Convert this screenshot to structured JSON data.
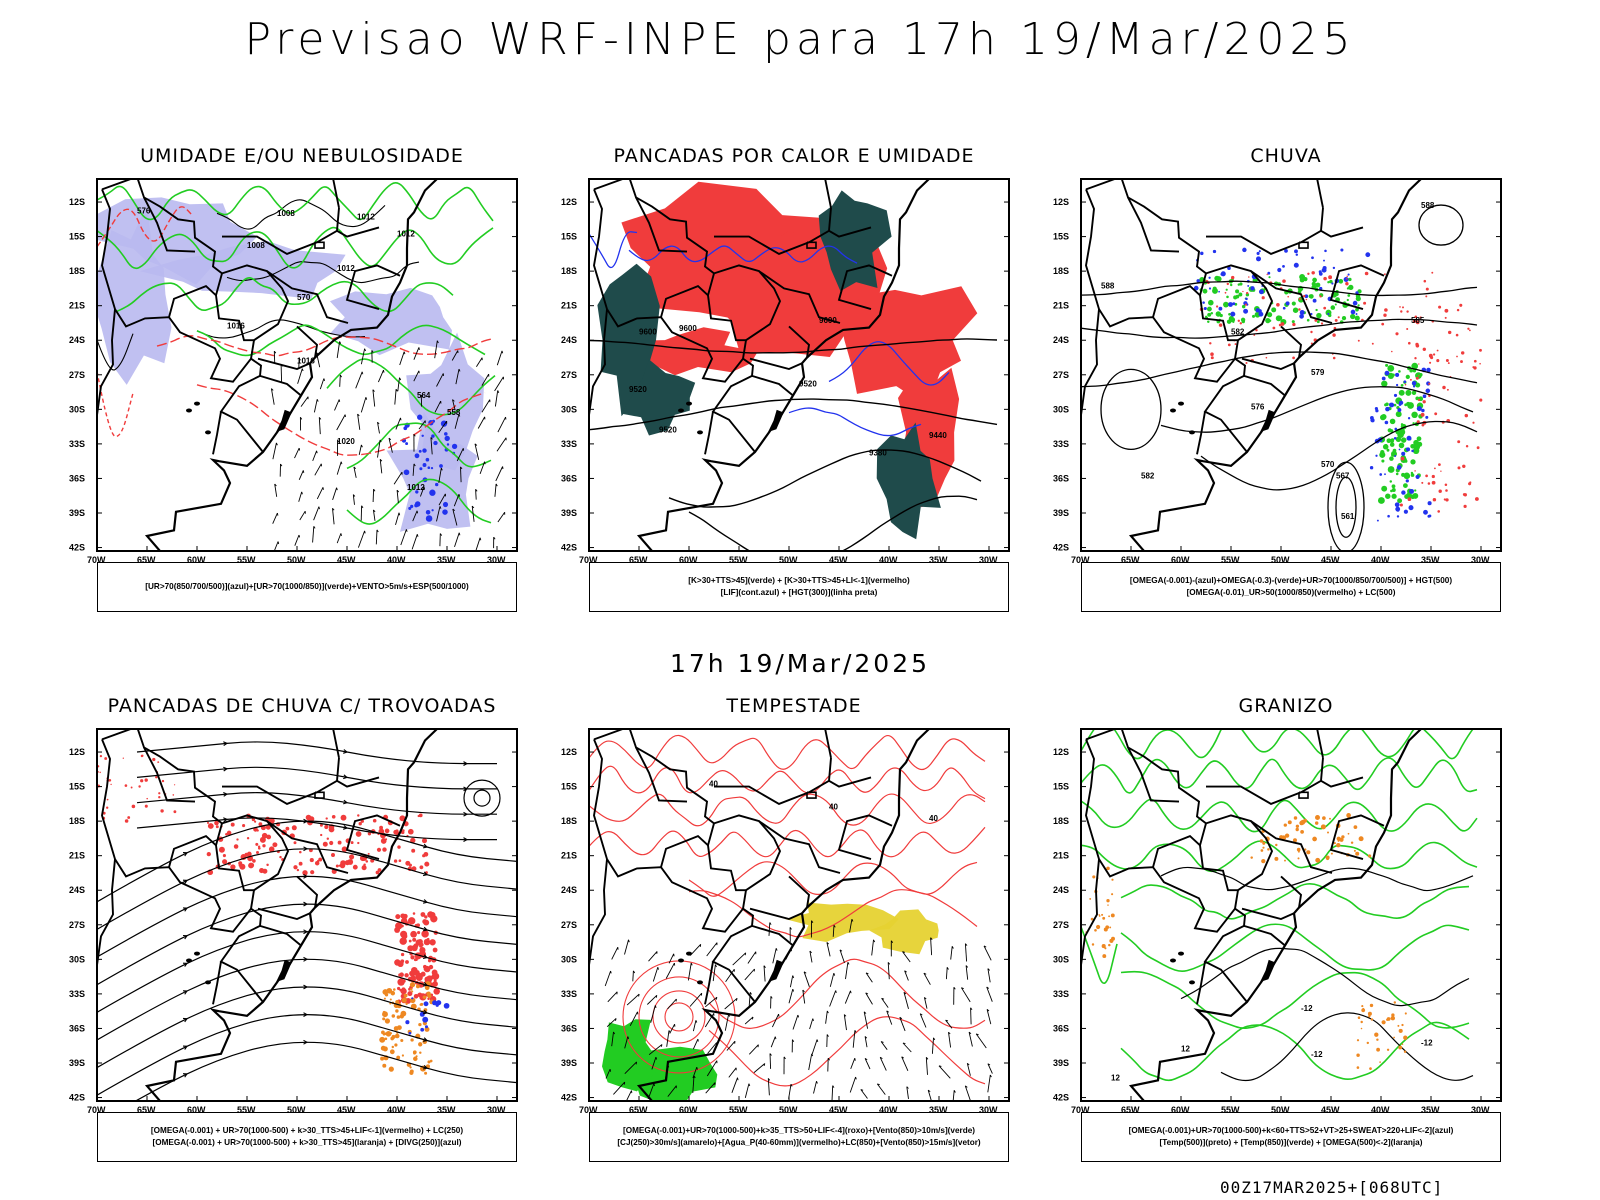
{
  "header": {
    "title": "Previsao WRF-INPE  para 17h 19/Mar/2025",
    "subtitle": "17h 19/Mar/2025",
    "run_info": "00Z17MAR2025+[068UTC]"
  },
  "axes": {
    "lat_labels": [
      "12S",
      "15S",
      "18S",
      "21S",
      "24S",
      "27S",
      "30S",
      "33S",
      "36S",
      "39S",
      "42S"
    ],
    "lon_labels": [
      "70W",
      "65W",
      "60W",
      "55W",
      "50W",
      "45W",
      "40W",
      "35W",
      "30W"
    ]
  },
  "colors": {
    "red": "#f03c3c",
    "green": "#22cc22",
    "blue": "#2233ee",
    "lavender": "#b9b9f0",
    "darkteal": "#1f4b4b",
    "yellow": "#e6d232",
    "orange": "#ee8822"
  },
  "panels": [
    {
      "id": "umidade",
      "title": "UMIDADE E/OU NEBULOSIDADE",
      "legend": [
        "[UR>70(850/700/500)](azul)+[UR>70(1000/850)](verde)+VENTO>5m/s+ESP(500/1000)"
      ],
      "contour_labels": [
        "1008",
        "1008",
        "1012",
        "1012",
        "1012",
        "1016",
        "1016",
        "1020",
        "1012",
        "576",
        "570",
        "564",
        "558"
      ]
    },
    {
      "id": "pancadas-calor",
      "title": "PANCADAS POR CALOR E UMIDADE",
      "legend": [
        "[K>30+TTS>45](verde) + [K>30+TTS>45+LI<-1](vermelho)",
        "[LIF](cont.azul) + [HGT(300)](linha preta)"
      ],
      "contour_labels": [
        "9600",
        "9600",
        "9600",
        "9520",
        "9520",
        "9440",
        "9380",
        "9520"
      ]
    },
    {
      "id": "chuva",
      "title": "CHUVA",
      "legend": [
        "[OMEGA(-0.001)-(azul)+OMEGA(-0.3)-(verde)+UR>70(1000/850/700/500)] + HGT(500)",
        "[OMEGA(-0.01)_UR>50(1000/850)(vermelho) + LC(500)"
      ],
      "contour_labels": [
        "588",
        "588",
        "585",
        "582",
        "579",
        "576",
        "570",
        "567",
        "561",
        "582"
      ]
    },
    {
      "id": "trovoadas",
      "title": "PANCADAS DE CHUVA C/ TROVOADAS",
      "legend": [
        "[OMEGA(-0.001) + UR>70(1000-500) + k>30_TTS>45+LIF<-1](vermelho) + LC(250)",
        "[OMEGA(-0.001) + UR>70(1000-500) + k>30_TTS>45](laranja) + [DIVG(250)](azul)"
      ],
      "contour_labels": []
    },
    {
      "id": "tempestade",
      "title": "TEMPESTADE",
      "legend": [
        "[OMEGA(-0.001)+UR>70(1000-500)+k>35_TTS>50+LIF<-4](roxo)+[Vento(850)>10m/s](verde)",
        "[CJ(250)>30m/s](amarelo)+[Agua_P(40-60mm)](vermelho)+LC(850)+[Vento(850)>15m/s](vetor)"
      ],
      "contour_labels": [
        "40",
        "40",
        "40"
      ]
    },
    {
      "id": "granizo",
      "title": "GRANIZO",
      "legend": [
        "[OMEGA(-0.001)+UR>70(1000-500)+k<60+TTS>52+VT>25+SWEAT>220+LIF<-2](azul)",
        "[Temp(500)](preto) + [Temp(850)](verde) + [OMEGA(500)<-2](laranja)"
      ],
      "contour_labels": [
        "-12",
        "-12",
        "-12",
        "12",
        "12"
      ]
    }
  ]
}
